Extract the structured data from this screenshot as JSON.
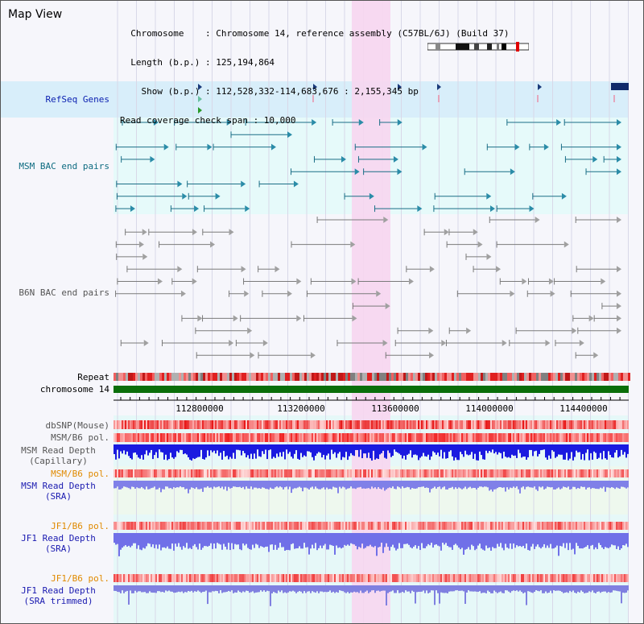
{
  "view": {
    "title": "Map View",
    "info_lines": [
      "  Chromosome    : Chromosome 14, reference assembly (C57BL/6J) (Build 37)",
      "  Length (b.p.) : 125,194,864",
      "    Show (b.p.) : 112,528,332-114,683,676 : 2,155,345 bp",
      "Read coverage check span : 10,000"
    ]
  },
  "tracks": {
    "refseq": "RefSeq Genes",
    "msm_bac": "MSM BAC end pairs",
    "b6n_bac": "B6N BAC end pairs",
    "repeat": "Repeat",
    "chromosome": "chromosome 14",
    "dbsnp": "dbSNP(Mouse)",
    "msm_b6_pol_1": "MSM/B6 pol.",
    "msm_depth_cap": "MSM Read Depth\n(Capillary)",
    "msm_b6_pol_2": "MSM/B6 pol.",
    "msm_depth_sra": "MSM Read Depth\n(SRA)",
    "jf1_b6_pol_1": "JF1/B6 pol.",
    "jf1_depth_sra": "JF1 Read Depth\n(SRA)",
    "jf1_b6_pol_2": "JF1/B6 pol.",
    "jf1_depth_trim": "JF1 Read Depth\n(SRA trimmed)"
  },
  "axis": {
    "ticks": [
      "112800000",
      "113200000",
      "113600000",
      "114000000",
      "114400000"
    ]
  },
  "colors": {
    "refseq_label": "#0a1fb0",
    "msm_label": "#0d6b80",
    "b6n_label": "#555555",
    "pol_label_orange": "#e08a00",
    "depth_label_blue": "#1a1ab0",
    "highlight": "#f7d6f0",
    "chromosome_bar": "#0a6e0a"
  }
}
